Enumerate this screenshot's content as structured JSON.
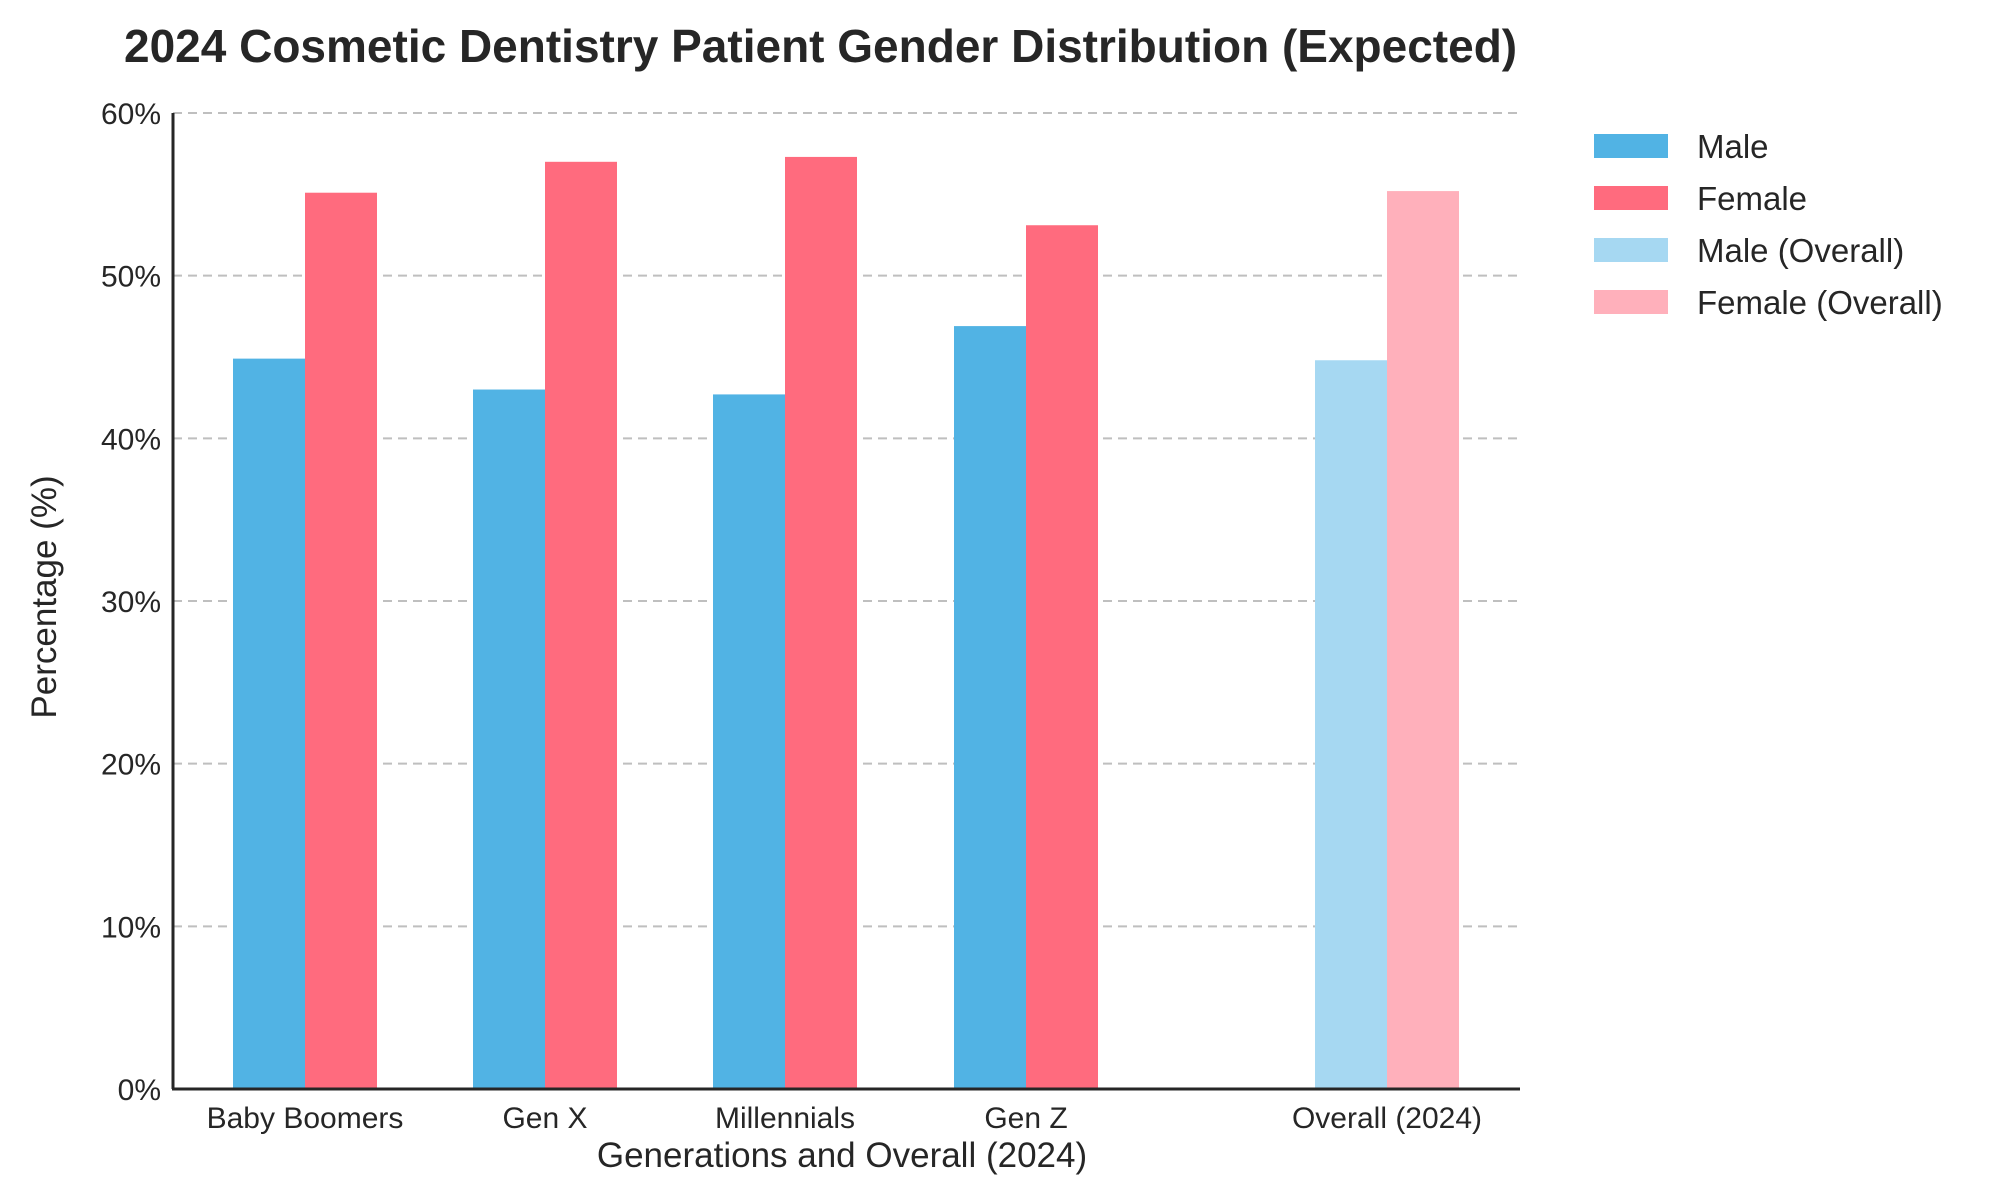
{
  "chart_data": {
    "type": "bar",
    "title": "2024 Cosmetic Dentistry Patient Gender Distribution (Expected)",
    "xlabel": "Generations and Overall (2024)",
    "ylabel": "Percentage (%)",
    "ylim": [
      0,
      60
    ],
    "yticks": [
      0,
      10,
      20,
      30,
      40,
      50,
      60
    ],
    "ytick_labels": [
      "0%",
      "10%",
      "20%",
      "30%",
      "40%",
      "50%",
      "60%"
    ],
    "grid": "horizontal dashed",
    "legend_position": "outside right, top",
    "categories": [
      "Baby Boomers",
      "Gen X",
      "Millennials",
      "Gen Z",
      "Overall (2024)"
    ],
    "series": [
      {
        "name": "Male",
        "color": "#51b3e4",
        "values": [
          44.9,
          43.0,
          42.7,
          46.9,
          null
        ]
      },
      {
        "name": "Female",
        "color": "#ff6b7e",
        "values": [
          55.1,
          57.0,
          57.3,
          53.1,
          null
        ]
      },
      {
        "name": "Male (Overall)",
        "color": "#a6d8f2",
        "values": [
          null,
          null,
          null,
          null,
          44.8
        ]
      },
      {
        "name": "Female (Overall)",
        "color": "#ffb0bb",
        "values": [
          null,
          null,
          null,
          null,
          55.2
        ]
      }
    ]
  }
}
